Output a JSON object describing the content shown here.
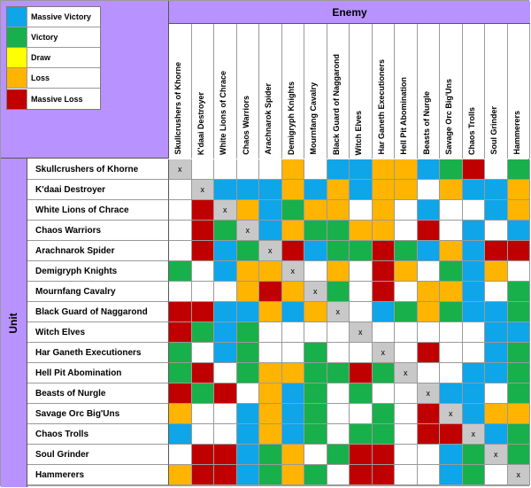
{
  "legend": [
    {
      "label": "Massive Victory",
      "color": "#0ea5e9"
    },
    {
      "label": "Victory",
      "color": "#18b04a"
    },
    {
      "label": "Draw",
      "color": "#ffff00"
    },
    {
      "label": "Loss",
      "color": "#ffb400"
    },
    {
      "label": "Massive Loss",
      "color": "#c00000"
    }
  ],
  "enemy_title": "Enemy",
  "unit_title": "Unit",
  "units": [
    "Skullcrushers of Khorne",
    "K'daai Destroyer",
    "White Lions of Chrace",
    "Chaos Warriors",
    "Arachnarok Spider",
    "Demigryph Knights",
    "Mournfang Cavalry",
    "Black Guard of Naggarond",
    "Witch Elves",
    "Har Ganeth Executioners",
    "Hell Pit Abomination",
    "Beasts of Nurgle",
    "Savage Orc Big'Uns",
    "Chaos Trolls",
    "Soul Grinder",
    "Hammerers"
  ],
  "colors": {
    "B": "#0ea5e9",
    "G": "#18b04a",
    "Y": "#ffff00",
    "O": "#ffb400",
    "R": "#c00000",
    "W": "#ffffff",
    "X": "#c8c8c8"
  },
  "matrix": [
    "XWWWWOWBBOOBGRWG",
    "WXBBBOBOBOOWOBBO",
    "WRXOBGOOWOWBWWBO",
    "WRGXBOGGOOWRWBWB",
    "WRBGXRBGGRGBOBRR",
    "GWBOOXWOWROWGBOW",
    "WWWOROXGWRWOOBWG",
    "RRBBOBOXWBGOGBBG",
    "RGBGWWWWXWWWWWBB",
    "GWBGWWGWWXWRWWBG",
    "GRWGOOGGRGXWWBBG",
    "RGRWOBGWGWWXBBWG",
    "OWWBOBGWWGWRXBOO",
    "BWWBOBGWGGWRRXBG",
    "WRRBGOWGRRWWBGXG",
    "ORRBGOGWRRWWBGWX"
  ]
}
